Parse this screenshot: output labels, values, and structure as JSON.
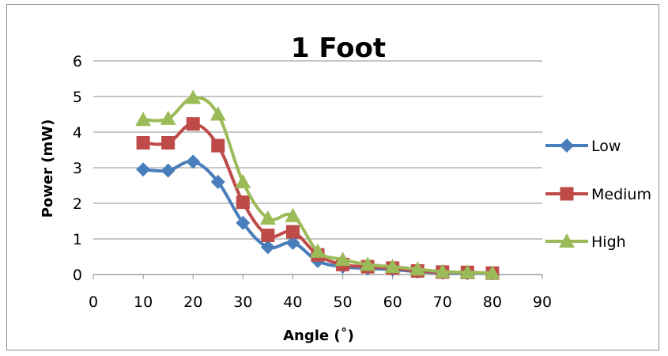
{
  "chart_data": {
    "type": "line",
    "title": "1 Foot",
    "xlabel": "Angle (˚)",
    "ylabel": "Power (mW)",
    "xlim": [
      0,
      90
    ],
    "ylim": [
      0,
      6
    ],
    "x_ticks": [
      "0",
      "10",
      "20",
      "30",
      "40",
      "50",
      "60",
      "70",
      "80",
      "90"
    ],
    "y_ticks": [
      "0",
      "1",
      "2",
      "3",
      "4",
      "5",
      "6"
    ],
    "grid": "horizontal",
    "legend_position": "right",
    "x": [
      10,
      15,
      20,
      25,
      30,
      35,
      40,
      45,
      50,
      55,
      60,
      65,
      70,
      75,
      80
    ],
    "series": [
      {
        "name": "Low",
        "color": "#4a7ebb",
        "marker": "diamond",
        "values": [
          2.95,
          2.92,
          3.17,
          2.6,
          1.45,
          0.77,
          0.89,
          0.38,
          0.22,
          0.17,
          0.14,
          0.08,
          0.05,
          0.04,
          0.03
        ]
      },
      {
        "name": "Medium",
        "color": "#be4b48",
        "marker": "square",
        "values": [
          3.7,
          3.7,
          4.23,
          3.62,
          2.03,
          1.1,
          1.2,
          0.55,
          0.28,
          0.22,
          0.18,
          0.1,
          0.07,
          0.06,
          0.04
        ]
      },
      {
        "name": "High",
        "color": "#9bbb59",
        "marker": "triangle",
        "values": [
          4.35,
          4.38,
          4.97,
          4.5,
          2.6,
          1.58,
          1.65,
          0.65,
          0.42,
          0.28,
          0.22,
          0.15,
          0.08,
          0.06,
          0.04
        ]
      }
    ]
  }
}
